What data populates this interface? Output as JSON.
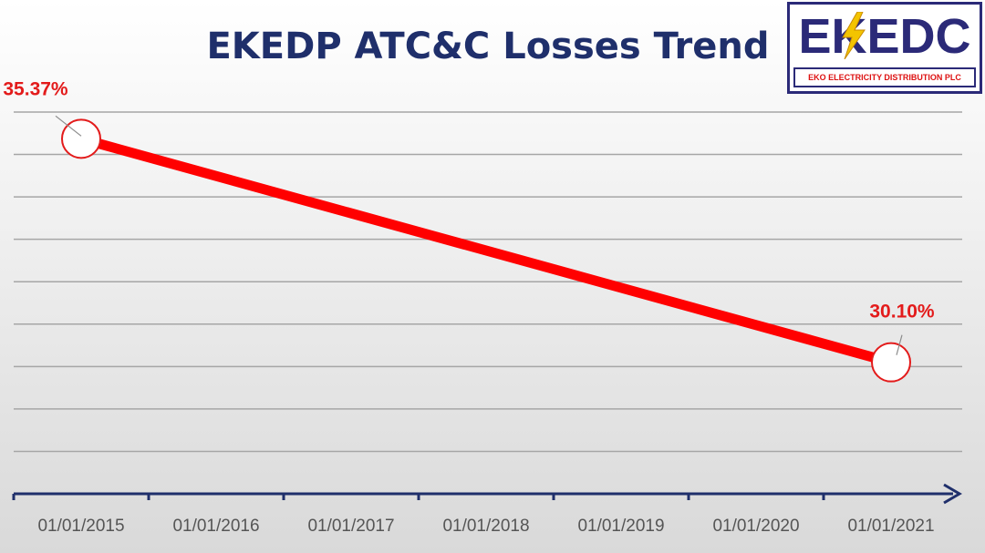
{
  "chart_data": {
    "type": "line",
    "title": "EKEDP ATC&C Losses Trend",
    "categories": [
      "01/01/2015",
      "01/01/2016",
      "01/01/2017",
      "01/01/2018",
      "01/01/2019",
      "01/01/2020",
      "01/01/2021"
    ],
    "points": [
      {
        "x": "01/01/2015",
        "y": 35.37,
        "label": "35.37%"
      },
      {
        "x": "01/01/2021",
        "y": 30.1,
        "label": "30.10%"
      }
    ],
    "ylim": [
      27,
      36
    ],
    "y_gridlines": [
      28,
      29,
      30,
      31,
      32,
      33,
      34,
      35,
      36
    ],
    "grid": true,
    "line_color": "#ff0000",
    "axis_color": "#1f2f6b"
  },
  "logo": {
    "text": "EKEDC",
    "subtitle": "EKO ELECTRICITY DISTRIBUTION PLC"
  }
}
